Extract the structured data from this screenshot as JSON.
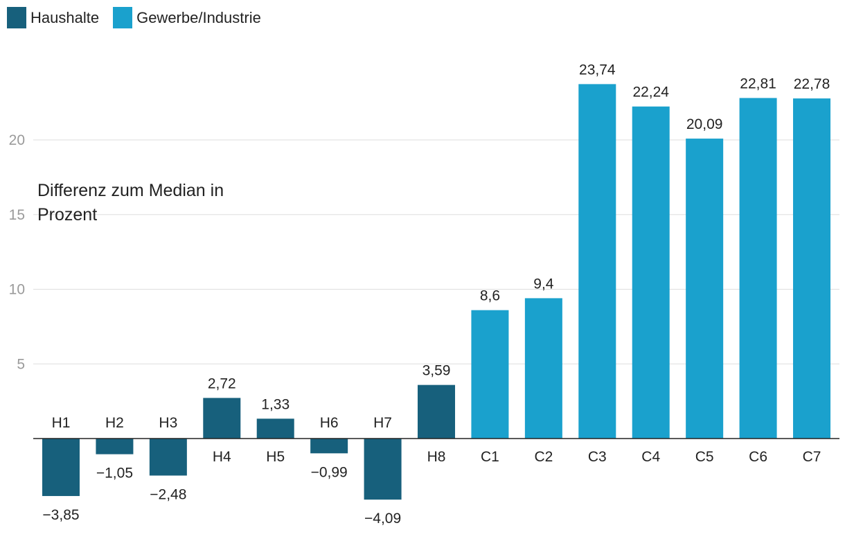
{
  "legend": [
    {
      "label": "Haushalte",
      "color": "#17607c"
    },
    {
      "label": "Gewerbe/Industrie",
      "color": "#1aa1cd"
    }
  ],
  "chart_data": {
    "type": "bar",
    "categories": [
      "H1",
      "H2",
      "H3",
      "H4",
      "H5",
      "H6",
      "H7",
      "H8",
      "C1",
      "C2",
      "C3",
      "C4",
      "C5",
      "C6",
      "C7"
    ],
    "values": [
      -3.85,
      -1.05,
      -2.48,
      2.72,
      1.33,
      -0.99,
      -4.09,
      3.59,
      8.6,
      9.4,
      23.74,
      22.24,
      20.09,
      22.81,
      22.78
    ],
    "value_labels": [
      "−3,85",
      "−1,05",
      "−2,48",
      "2,72",
      "1,33",
      "−0,99",
      "−4,09",
      "3,59",
      "8,6",
      "9,4",
      "23,74",
      "22,24",
      "20,09",
      "22,81",
      "22,78"
    ],
    "groups": [
      "Haushalte",
      "Haushalte",
      "Haushalte",
      "Haushalte",
      "Haushalte",
      "Haushalte",
      "Haushalte",
      "Haushalte",
      "Gewerbe/Industrie",
      "Gewerbe/Industrie",
      "Gewerbe/Industrie",
      "Gewerbe/Industrie",
      "Gewerbe/Industrie",
      "Gewerbe/Industrie",
      "Gewerbe/Industrie"
    ],
    "ylabel_lines": [
      "Differenz zum Median in",
      "Prozent"
    ],
    "yticks": [
      5,
      10,
      15,
      20
    ],
    "ylim": [
      -5,
      25
    ],
    "grid": true
  }
}
